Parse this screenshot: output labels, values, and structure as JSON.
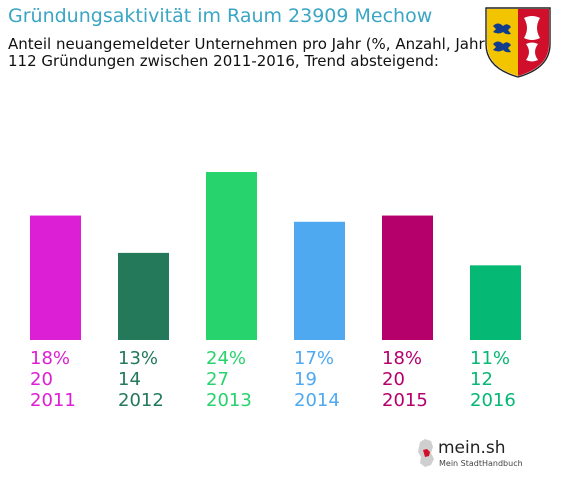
{
  "chart_data": {
    "type": "bar",
    "title": "Gründungsaktivität im Raum 23909 Mechow",
    "subtitle": [
      "Anteil neuangemeldeter Unternehmen pro Jahr (%, Anzahl, Jahr)",
      "112 Gründungen zwischen 2011-2016, Trend absteigend:"
    ],
    "categories": [
      "2011",
      "2012",
      "2013",
      "2014",
      "2015",
      "2016"
    ],
    "values": [
      20,
      14,
      27,
      19,
      20,
      12
    ],
    "percent_labels": [
      "18%",
      "13%",
      "24%",
      "17%",
      "18%",
      "11%"
    ],
    "colors": [
      "#dc1ed4",
      "#23795a",
      "#27d36c",
      "#4fa9f0",
      "#b5006c",
      "#05b873"
    ],
    "ylim": [
      0,
      27
    ],
    "grid": false
  },
  "brand": {
    "name": "mein.sh",
    "tagline": "Mein StadtHandbuch"
  },
  "icons": {
    "crest": "schleswig-holstein-coat-of-arms-icon",
    "logo": "germany-map-icon"
  }
}
